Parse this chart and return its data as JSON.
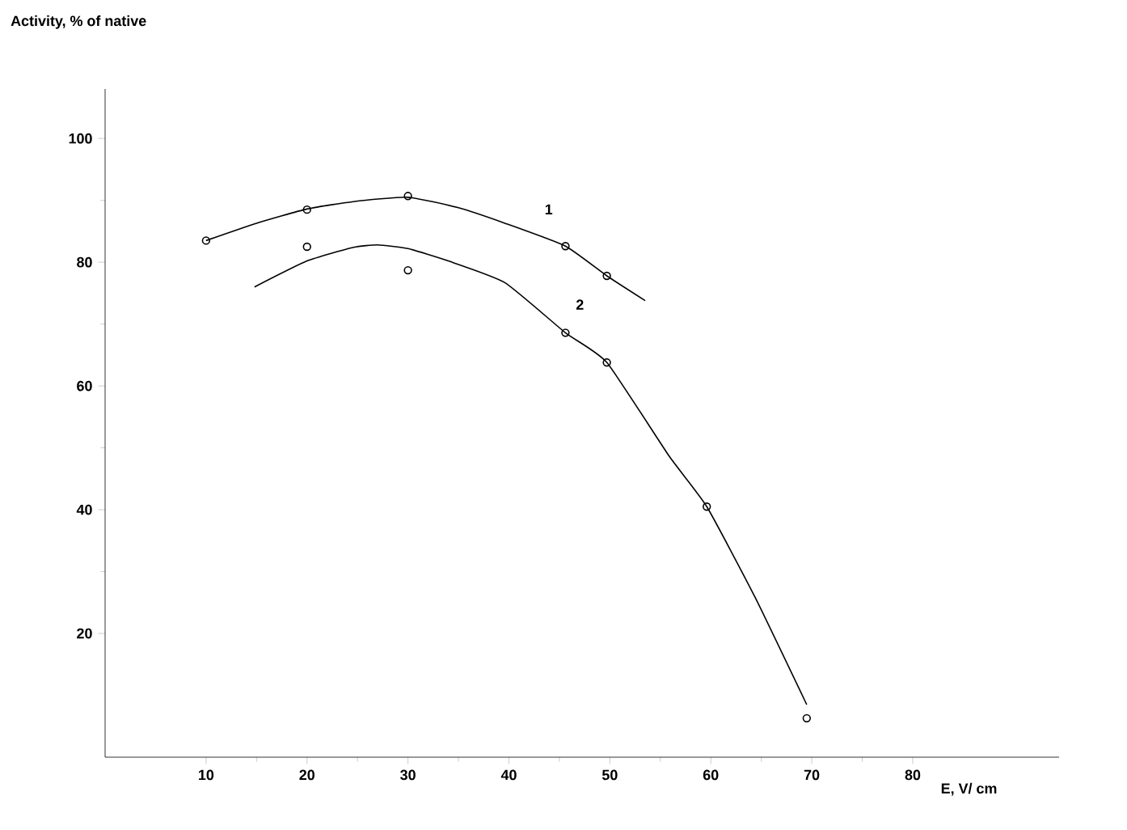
{
  "chart_data": {
    "type": "scatter",
    "xlabel": "E, V/ cm",
    "ylabel": "Activity, % of native",
    "xlim": [
      0,
      94.5
    ],
    "ylim": [
      0,
      108
    ],
    "xticks": [
      10,
      20,
      30,
      40,
      50,
      60,
      70,
      80
    ],
    "yticks": [
      20,
      40,
      60,
      80,
      100
    ],
    "grid": false,
    "legend": false,
    "marker": "circle",
    "line_style": "solid",
    "series": [
      {
        "color": "#000000",
        "x": [
          10,
          20,
          30,
          45.6,
          49.7
        ],
        "values": [
          83.5,
          88.5,
          90.7,
          82.6,
          77.8
        ]
      },
      {
        "color": "#000000",
        "x": [
          20,
          30,
          45.6,
          49.7,
          59.6,
          69.5
        ],
        "values": [
          82.5,
          78.7,
          68.6,
          63.8,
          40.5,
          6.3
        ]
      },
      {
        "type": "line",
        "name": "1",
        "marker": "none",
        "color": "#000000",
        "x": [
          10,
          15,
          20,
          24.6,
          30,
          35,
          39.6,
          45.6,
          49.7,
          53.5
        ],
        "values": [
          83.5,
          86.3,
          88.6,
          89.8,
          90.5,
          88.8,
          86.3,
          82.6,
          77.8,
          73.8
        ]
      },
      {
        "type": "line",
        "name": "2",
        "marker": "none",
        "color": "#000000",
        "x": [
          14.8,
          20,
          24.6,
          27.0,
          30,
          34.0,
          39.6,
          45.6,
          49.7,
          55.9,
          59.6,
          64.4,
          69.5
        ],
        "values": [
          76,
          80.2,
          82.4,
          82.8,
          82.2,
          80.2,
          76.7,
          68.6,
          63.8,
          48.6,
          40.5,
          25.8,
          8.5
        ]
      }
    ]
  }
}
